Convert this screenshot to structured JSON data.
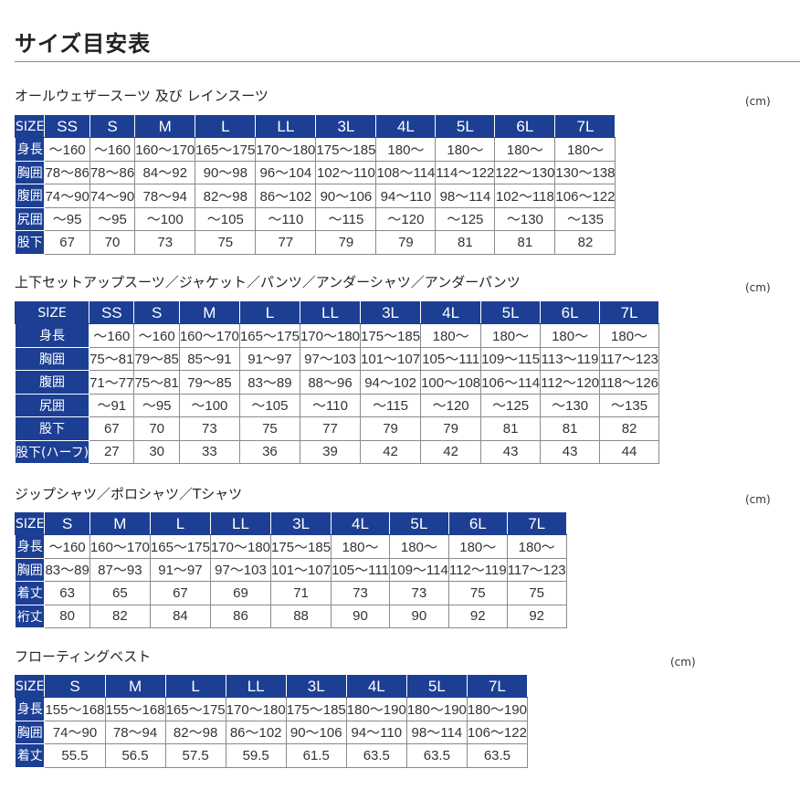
{
  "title": "サイズ目安表",
  "unit": "(cm)",
  "tables": [
    {
      "label": "オールウェザースーツ 及び レインスーツ",
      "header": [
        "SIZE",
        "SS",
        "S",
        "M",
        "L",
        "LL",
        "3L",
        "4L",
        "5L",
        "6L",
        "7L"
      ],
      "rows": [
        [
          "身長",
          "〜160",
          "〜160",
          "160〜170",
          "165〜175",
          "170〜180",
          "175〜185",
          "180〜",
          "180〜",
          "180〜",
          "180〜"
        ],
        [
          "胸囲",
          "78〜86",
          "78〜86",
          "84〜92",
          "90〜98",
          "96〜104",
          "102〜110",
          "108〜114",
          "114〜122",
          "122〜130",
          "130〜138"
        ],
        [
          "腹囲",
          "74〜90",
          "74〜90",
          "78〜94",
          "82〜98",
          "86〜102",
          "90〜106",
          "94〜110",
          "98〜114",
          "102〜118",
          "106〜122"
        ],
        [
          "尻囲",
          "〜95",
          "〜95",
          "〜100",
          "〜105",
          "〜110",
          "〜115",
          "〜120",
          "〜125",
          "〜130",
          "〜135"
        ],
        [
          "股下",
          "67",
          "70",
          "73",
          "75",
          "77",
          "79",
          "79",
          "81",
          "81",
          "82"
        ]
      ]
    },
    {
      "label": "上下セットアップスーツ／ジャケット／パンツ／アンダーシャツ／アンダーパンツ",
      "header": [
        "SIZE",
        "SS",
        "S",
        "M",
        "L",
        "LL",
        "3L",
        "4L",
        "5L",
        "6L",
        "7L"
      ],
      "rows": [
        [
          "身長",
          "〜160",
          "〜160",
          "160〜170",
          "165〜175",
          "170〜180",
          "175〜185",
          "180〜",
          "180〜",
          "180〜",
          "180〜"
        ],
        [
          "胸囲",
          "75〜81",
          "79〜85",
          "85〜91",
          "91〜97",
          "97〜103",
          "101〜107",
          "105〜111",
          "109〜115",
          "113〜119",
          "117〜123"
        ],
        [
          "腹囲",
          "71〜77",
          "75〜81",
          "79〜85",
          "83〜89",
          "88〜96",
          "94〜102",
          "100〜108",
          "106〜114",
          "112〜120",
          "118〜126"
        ],
        [
          "尻囲",
          "〜91",
          "〜95",
          "〜100",
          "〜105",
          "〜110",
          "〜115",
          "〜120",
          "〜125",
          "〜130",
          "〜135"
        ],
        [
          "股下",
          "67",
          "70",
          "73",
          "75",
          "77",
          "79",
          "79",
          "81",
          "81",
          "82"
        ],
        [
          "股下(ハーフ)",
          "27",
          "30",
          "33",
          "36",
          "39",
          "42",
          "42",
          "43",
          "43",
          "44"
        ]
      ]
    },
    {
      "label": "ジップシャツ／ポロシャツ／Tシャツ",
      "header": [
        "SIZE",
        "S",
        "M",
        "L",
        "LL",
        "3L",
        "4L",
        "5L",
        "6L",
        "7L"
      ],
      "rows": [
        [
          "身長",
          "〜160",
          "160〜170",
          "165〜175",
          "170〜180",
          "175〜185",
          "180〜",
          "180〜",
          "180〜",
          "180〜"
        ],
        [
          "胸囲",
          "83〜89",
          "87〜93",
          "91〜97",
          "97〜103",
          "101〜107",
          "105〜111",
          "109〜114",
          "112〜119",
          "117〜123"
        ],
        [
          "着丈",
          "63",
          "65",
          "67",
          "69",
          "71",
          "73",
          "73",
          "75",
          "75"
        ],
        [
          "裄丈",
          "80",
          "82",
          "84",
          "86",
          "88",
          "90",
          "90",
          "92",
          "92"
        ]
      ]
    },
    {
      "label": "フローティングベスト",
      "header": [
        "SIZE",
        "S",
        "M",
        "L",
        "LL",
        "3L",
        "4L",
        "5L",
        "7L"
      ],
      "rows": [
        [
          "身長",
          "155〜168",
          "155〜168",
          "165〜175",
          "170〜180",
          "175〜185",
          "180〜190",
          "180〜190",
          "180〜190"
        ],
        [
          "胸囲",
          "74〜90",
          "78〜94",
          "82〜98",
          "86〜102",
          "90〜106",
          "94〜110",
          "98〜114",
          "106〜122"
        ],
        [
          "着丈",
          "55.5",
          "56.5",
          "57.5",
          "59.5",
          "61.5",
          "63.5",
          "63.5",
          "63.5"
        ]
      ]
    }
  ]
}
